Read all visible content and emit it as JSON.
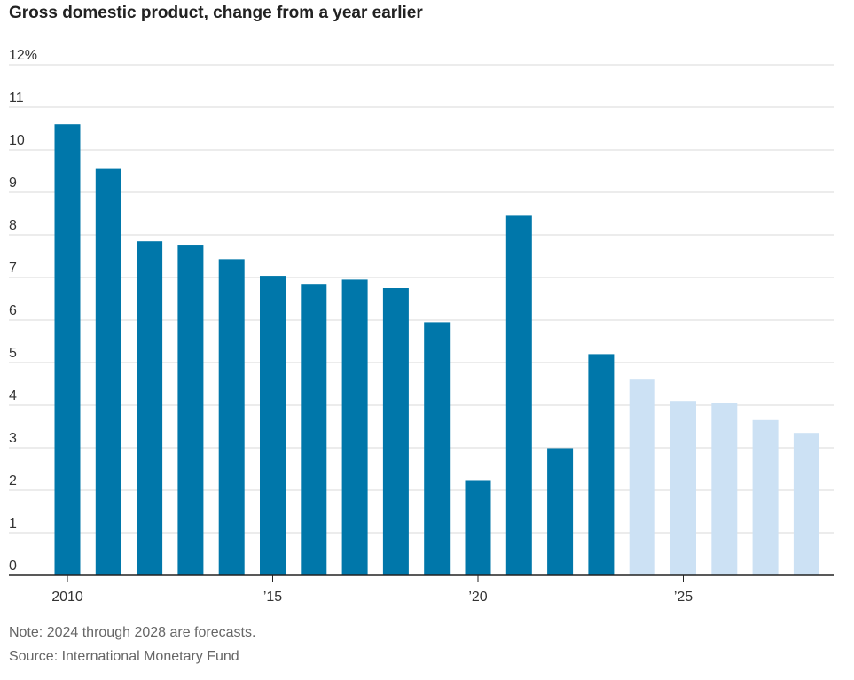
{
  "chart_data": {
    "type": "bar",
    "title": "Gross domestic product, change from a year earlier",
    "xlabel": "",
    "ylabel": "",
    "categories": [
      "2010",
      "2011",
      "2012",
      "2013",
      "2014",
      "2015",
      "2016",
      "2017",
      "2018",
      "2019",
      "2020",
      "2021",
      "2022",
      "2023",
      "2024",
      "2025",
      "2026",
      "2027",
      "2028"
    ],
    "values": [
      10.6,
      9.55,
      7.85,
      7.77,
      7.43,
      7.04,
      6.85,
      6.95,
      6.75,
      5.95,
      2.24,
      8.45,
      2.99,
      5.2,
      4.6,
      4.1,
      4.05,
      3.65,
      3.35
    ],
    "forecast": [
      false,
      false,
      false,
      false,
      false,
      false,
      false,
      false,
      false,
      false,
      false,
      false,
      false,
      false,
      true,
      true,
      true,
      true,
      true
    ],
    "x_tick_labels": [
      {
        "index": 0,
        "label": "2010"
      },
      {
        "index": 5,
        "label": "’15"
      },
      {
        "index": 10,
        "label": "’20"
      },
      {
        "index": 15,
        "label": "’25"
      }
    ],
    "y_ticks": [
      0,
      1,
      2,
      3,
      4,
      5,
      6,
      7,
      8,
      9,
      10,
      11,
      12
    ],
    "y_tick_labels": [
      "0",
      "1",
      "2",
      "3",
      "4",
      "5",
      "6",
      "7",
      "8",
      "9",
      "10",
      "11",
      "12%"
    ],
    "ylim": [
      0,
      12
    ],
    "grid": true,
    "colors": {
      "actual": "#0077aa",
      "forecast": "#cce1f4",
      "grid": "#d9d9d9",
      "axis": "#222222"
    }
  },
  "footer": {
    "note": "Note: 2024 through 2028 are forecasts.",
    "source": "Source: International Monetary Fund"
  }
}
